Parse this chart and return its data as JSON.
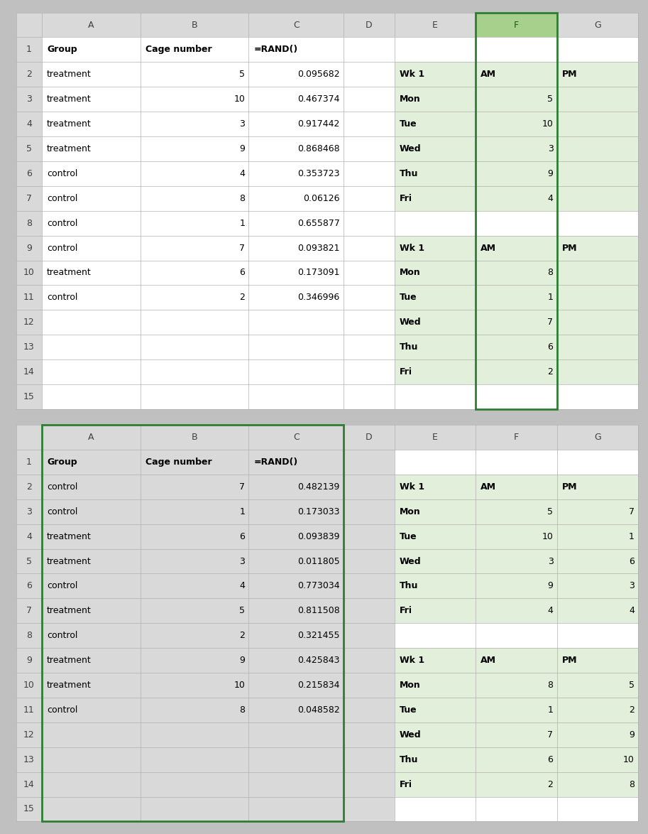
{
  "top1": {
    "rows": [
      {
        "row": 1,
        "A": "Group",
        "A_bold": true,
        "B": "Cage number",
        "B_bold": true,
        "C": "=RAND()",
        "C_bold": true,
        "E": "",
        "F": "",
        "G": ""
      },
      {
        "row": 2,
        "A": "treatment",
        "B": "5",
        "B_align": "right",
        "C": "0.095682",
        "C_align": "right",
        "E": "Wk 1",
        "E_bold": true,
        "F": "AM",
        "F_bold": true,
        "G": "PM",
        "G_bold": true
      },
      {
        "row": 3,
        "A": "treatment",
        "B": "10",
        "B_align": "right",
        "C": "0.467374",
        "C_align": "right",
        "E": "Mon",
        "E_bold": true,
        "F": "5",
        "F_align": "right",
        "G": ""
      },
      {
        "row": 4,
        "A": "treatment",
        "B": "3",
        "B_align": "right",
        "C": "0.917442",
        "C_align": "right",
        "E": "Tue",
        "E_bold": true,
        "F": "10",
        "F_align": "right",
        "G": ""
      },
      {
        "row": 5,
        "A": "treatment",
        "B": "9",
        "B_align": "right",
        "C": "0.868468",
        "C_align": "right",
        "E": "Wed",
        "E_bold": true,
        "F": "3",
        "F_align": "right",
        "G": ""
      },
      {
        "row": 6,
        "A": "control",
        "B": "4",
        "B_align": "right",
        "C": "0.353723",
        "C_align": "right",
        "E": "Thu",
        "E_bold": true,
        "F": "9",
        "F_align": "right",
        "G": ""
      },
      {
        "row": 7,
        "A": "control",
        "B": "8",
        "B_align": "right",
        "C": "0.06126",
        "C_align": "right",
        "E": "Fri",
        "E_bold": true,
        "F": "4",
        "F_align": "right",
        "G": ""
      },
      {
        "row": 8,
        "A": "control",
        "B": "1",
        "B_align": "right",
        "C": "0.655877",
        "C_align": "right",
        "E": "",
        "F": "",
        "G": ""
      },
      {
        "row": 9,
        "A": "control",
        "B": "7",
        "B_align": "right",
        "C": "0.093821",
        "C_align": "right",
        "E": "Wk 1",
        "E_bold": true,
        "F": "AM",
        "F_bold": true,
        "G": "PM",
        "G_bold": true
      },
      {
        "row": 10,
        "A": "treatment",
        "B": "6",
        "B_align": "right",
        "C": "0.173091",
        "C_align": "right",
        "E": "Mon",
        "E_bold": true,
        "F": "8",
        "F_align": "right",
        "G": ""
      },
      {
        "row": 11,
        "A": "control",
        "B": "2",
        "B_align": "right",
        "C": "0.346996",
        "C_align": "right",
        "E": "Tue",
        "E_bold": true,
        "F": "1",
        "F_align": "right",
        "G": ""
      },
      {
        "row": 12,
        "A": "",
        "B": "",
        "C": "",
        "E": "Wed",
        "E_bold": true,
        "F": "7",
        "F_align": "right",
        "G": ""
      },
      {
        "row": 13,
        "A": "",
        "B": "",
        "C": "",
        "E": "Thu",
        "E_bold": true,
        "F": "6",
        "F_align": "right",
        "G": ""
      },
      {
        "row": 14,
        "A": "",
        "B": "",
        "C": "",
        "E": "Fri",
        "E_bold": true,
        "F": "2",
        "F_align": "right",
        "G": ""
      },
      {
        "row": 15,
        "A": "",
        "B": "",
        "C": "",
        "E": "",
        "F": "",
        "G": ""
      }
    ],
    "f_selected_col": true
  },
  "top2": {
    "rows": [
      {
        "row": 1,
        "A": "Group",
        "A_bold": true,
        "B": "Cage number",
        "B_bold": true,
        "C": "=RAND()",
        "C_bold": true,
        "E": "",
        "F": "",
        "G": ""
      },
      {
        "row": 2,
        "A": "control",
        "B": "7",
        "B_align": "right",
        "C": "0.482139",
        "C_align": "right",
        "E": "Wk 1",
        "E_bold": true,
        "F": "AM",
        "F_bold": true,
        "G": "PM",
        "G_bold": true
      },
      {
        "row": 3,
        "A": "control",
        "B": "1",
        "B_align": "right",
        "C": "0.173033",
        "C_align": "right",
        "E": "Mon",
        "E_bold": true,
        "F": "5",
        "F_align": "right",
        "G": "7",
        "G_align": "right"
      },
      {
        "row": 4,
        "A": "treatment",
        "B": "6",
        "B_align": "right",
        "C": "0.093839",
        "C_align": "right",
        "E": "Tue",
        "E_bold": true,
        "F": "10",
        "F_align": "right",
        "G": "1",
        "G_align": "right"
      },
      {
        "row": 5,
        "A": "treatment",
        "B": "3",
        "B_align": "right",
        "C": "0.011805",
        "C_align": "right",
        "E": "Wed",
        "E_bold": true,
        "F": "3",
        "F_align": "right",
        "G": "6",
        "G_align": "right"
      },
      {
        "row": 6,
        "A": "control",
        "B": "4",
        "B_align": "right",
        "C": "0.773034",
        "C_align": "right",
        "E": "Thu",
        "E_bold": true,
        "F": "9",
        "F_align": "right",
        "G": "3",
        "G_align": "right"
      },
      {
        "row": 7,
        "A": "treatment",
        "B": "5",
        "B_align": "right",
        "C": "0.811508",
        "C_align": "right",
        "E": "Fri",
        "E_bold": true,
        "F": "4",
        "F_align": "right",
        "G": "4",
        "G_align": "right"
      },
      {
        "row": 8,
        "A": "control",
        "B": "2",
        "B_align": "right",
        "C": "0.321455",
        "C_align": "right",
        "E": "",
        "F": "",
        "G": ""
      },
      {
        "row": 9,
        "A": "treatment",
        "B": "9",
        "B_align": "right",
        "C": "0.425843",
        "C_align": "right",
        "E": "Wk 1",
        "E_bold": true,
        "F": "AM",
        "F_bold": true,
        "G": "PM",
        "G_bold": true
      },
      {
        "row": 10,
        "A": "treatment",
        "B": "10",
        "B_align": "right",
        "C": "0.215834",
        "C_align": "right",
        "E": "Mon",
        "E_bold": true,
        "F": "8",
        "F_align": "right",
        "G": "5",
        "G_align": "right"
      },
      {
        "row": 11,
        "A": "control",
        "B": "8",
        "B_align": "right",
        "C": "0.048582",
        "C_align": "right",
        "E": "Tue",
        "E_bold": true,
        "F": "1",
        "F_align": "right",
        "G": "2",
        "G_align": "right"
      },
      {
        "row": 12,
        "A": "",
        "B": "",
        "C": "",
        "E": "Wed",
        "E_bold": true,
        "F": "7",
        "F_align": "right",
        "G": "9",
        "G_align": "right"
      },
      {
        "row": 13,
        "A": "",
        "B": "",
        "C": "",
        "E": "Thu",
        "E_bold": true,
        "F": "6",
        "F_align": "right",
        "G": "10",
        "G_align": "right"
      },
      {
        "row": 14,
        "A": "",
        "B": "",
        "C": "",
        "E": "Fri",
        "E_bold": true,
        "F": "2",
        "F_align": "right",
        "G": "8",
        "G_align": "right"
      },
      {
        "row": 15,
        "A": "",
        "B": "",
        "C": "",
        "E": "",
        "F": "",
        "G": ""
      }
    ],
    "abc_selected": true
  }
}
